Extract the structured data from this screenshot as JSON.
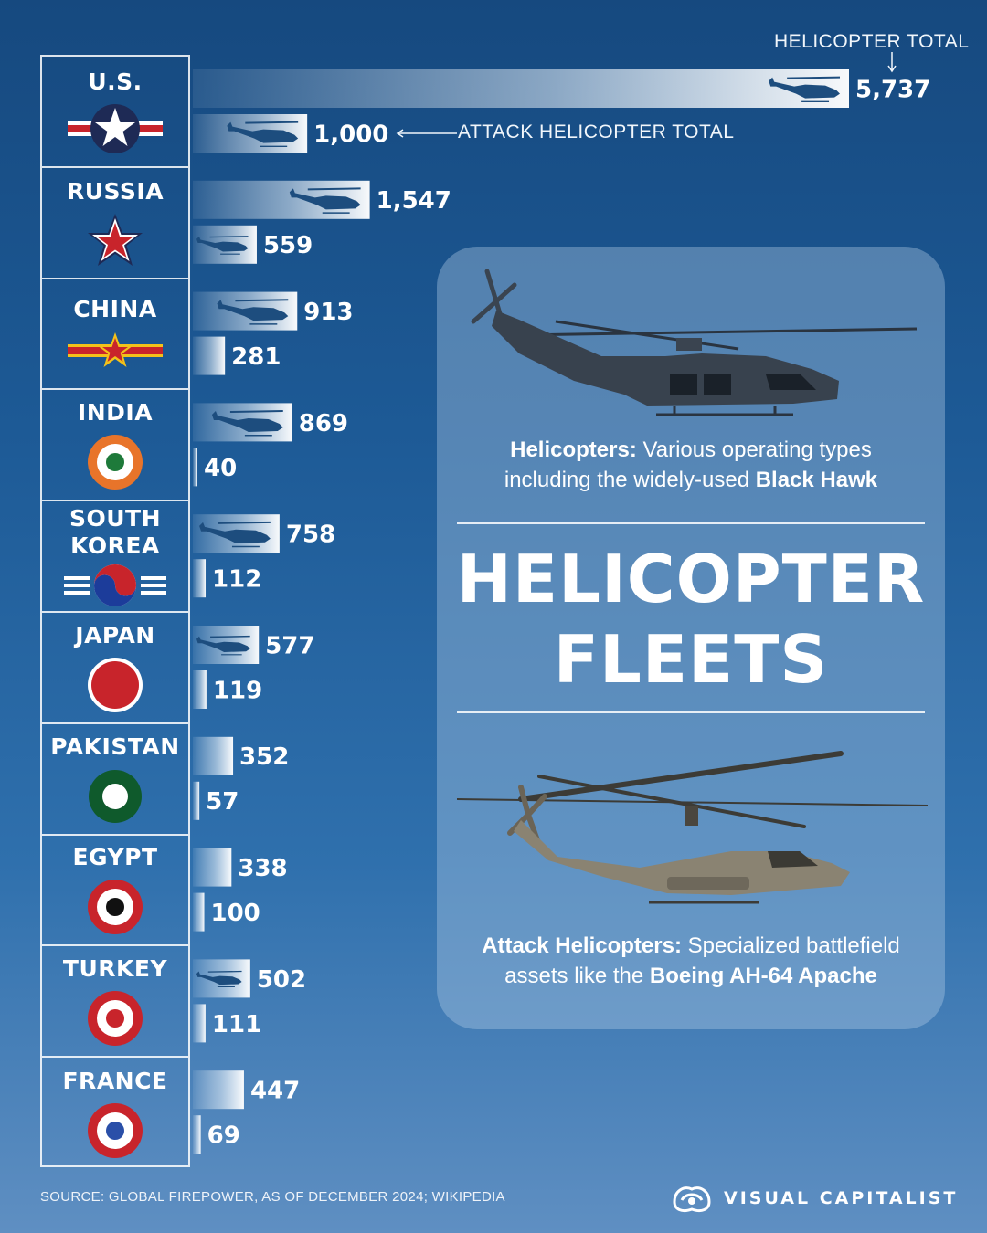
{
  "header": {
    "total_label": "HELICOPTER TOTAL",
    "attack_label": "ATTACK HELICOPTER TOTAL"
  },
  "countries": [
    {
      "name": "U.S.",
      "flag": "us-roundel-icon"
    },
    {
      "name": "RUSSIA",
      "flag": "russia-star-icon"
    },
    {
      "name": "CHINA",
      "flag": "china-star-icon"
    },
    {
      "name": "INDIA",
      "flag": "india-roundel-icon"
    },
    {
      "name": "SOUTH\nKOREA",
      "flag": "south-korea-taegeuk-icon"
    },
    {
      "name": "JAPAN",
      "flag": "japan-hinomaru-icon"
    },
    {
      "name": "PAKISTAN",
      "flag": "pakistan-roundel-icon"
    },
    {
      "name": "EGYPT",
      "flag": "egypt-roundel-icon"
    },
    {
      "name": "TURKEY",
      "flag": "turkey-roundel-icon"
    },
    {
      "name": "FRANCE",
      "flag": "france-roundel-icon"
    }
  ],
  "chart_data": {
    "type": "bar",
    "categories": [
      "U.S.",
      "RUSSIA",
      "CHINA",
      "INDIA",
      "SOUTH KOREA",
      "JAPAN",
      "PAKISTAN",
      "EGYPT",
      "TURKEY",
      "FRANCE"
    ],
    "series": [
      {
        "name": "HELICOPTER TOTAL",
        "values": [
          5737,
          1547,
          913,
          869,
          758,
          577,
          352,
          338,
          502,
          447
        ]
      },
      {
        "name": "ATTACK HELICOPTER TOTAL",
        "values": [
          1000,
          559,
          281,
          40,
          112,
          119,
          57,
          100,
          111,
          69
        ]
      }
    ],
    "value_labels": {
      "total": [
        "5,737",
        "1,547",
        "913",
        "869",
        "758",
        "577",
        "352",
        "338",
        "502",
        "447"
      ],
      "attack": [
        "1,000",
        "559",
        "281",
        "40",
        "112",
        "119",
        "57",
        "100",
        "111",
        "69"
      ]
    },
    "orientation": "horizontal"
  },
  "card": {
    "desc1_bold": "Helicopters:",
    "desc1_text": " Various operating types",
    "desc1_line2": "including the widely-used ",
    "desc1_bold2": "Black Hawk",
    "title_line1": "HELICOPTER",
    "title_line2": "FLEETS",
    "desc2_bold": "Attack Helicopters:",
    "desc2_text": " Specialized battlefield",
    "desc2_line2": "assets like the ",
    "desc2_bold2": "Boeing AH-64 Apache",
    "image1": "black-hawk-helicopter-photo",
    "image2": "apache-attack-helicopter-photo"
  },
  "footer": {
    "source": "SOURCE: GLOBAL FIREPOWER, AS OF DECEMBER 2024; WIKIPEDIA",
    "brand": "VISUAL CAPITALIST"
  },
  "colors": {
    "flag_red": "#c8242b",
    "flag_navy": "#1e2a55",
    "india_orange": "#e8742a",
    "india_green": "#1e7a3a",
    "pakistan_green": "#0f5a2c",
    "korea_blue": "#1c3c9a",
    "china_gold": "#f3c21a"
  }
}
